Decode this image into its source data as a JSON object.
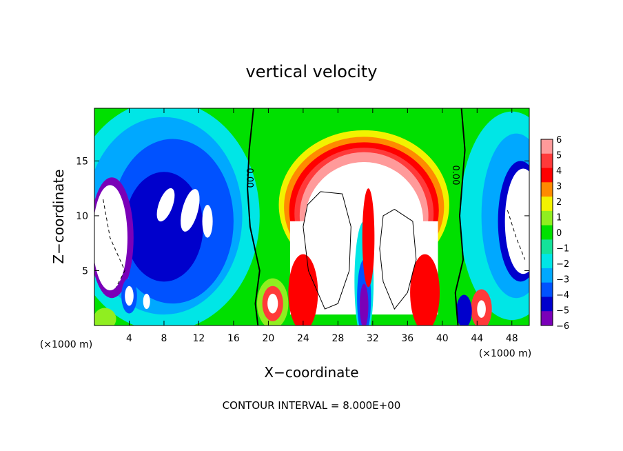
{
  "chart_data": {
    "type": "heatmap",
    "title": "vertical velocity",
    "xlabel": "X−coordinate",
    "ylabel": "Z−coordinate",
    "x_unit": "(×1000 m)",
    "y_unit": "(×1000 m)",
    "xlim": [
      0,
      50
    ],
    "ylim": [
      0,
      19.8
    ],
    "x_ticks": [
      4,
      8,
      12,
      16,
      20,
      24,
      28,
      32,
      36,
      40,
      44,
      48
    ],
    "y_ticks": [
      5,
      10,
      15
    ],
    "colorbar": {
      "range": [
        -6,
        6
      ],
      "levels": [
        "6",
        "5",
        "4",
        "3",
        "2",
        "1",
        "0",
        "−1",
        "−2",
        "−3",
        "−4",
        "−5",
        "−6"
      ],
      "colors": [
        "#ff9a9a",
        "#ff3a3a",
        "#ff0000",
        "#ff8a00",
        "#f2f200",
        "#90ee20",
        "#00e000",
        "#14e29a",
        "#00e6e6",
        "#00a8ff",
        "#0052ff",
        "#0000cc",
        "#7a00b8"
      ]
    },
    "contour_label": "0.00",
    "contour_interval_text": "CONTOUR INTERVAL = 8.000E+00",
    "features": [
      {
        "name": "central updraft",
        "x": 31,
        "z": 10,
        "w": 8
      },
      {
        "name": "left downdraft",
        "x": 7,
        "z": 11,
        "w": -6
      },
      {
        "name": "right downdraft",
        "x": 47,
        "z": 10,
        "w": -6
      },
      {
        "name": "central downdraft",
        "x": 31,
        "z": 3,
        "w": -5
      },
      {
        "name": "low updraft",
        "x": 20.5,
        "z": 2,
        "w": 5
      },
      {
        "name": "low updraft",
        "x": 44.5,
        "z": 1.5,
        "w": 5
      },
      {
        "name": "left lower updraft",
        "x": 4,
        "z": 2.5,
        "w": 7
      },
      {
        "name": "left lower updraft",
        "x": 6,
        "z": 2,
        "w": 7
      }
    ]
  }
}
